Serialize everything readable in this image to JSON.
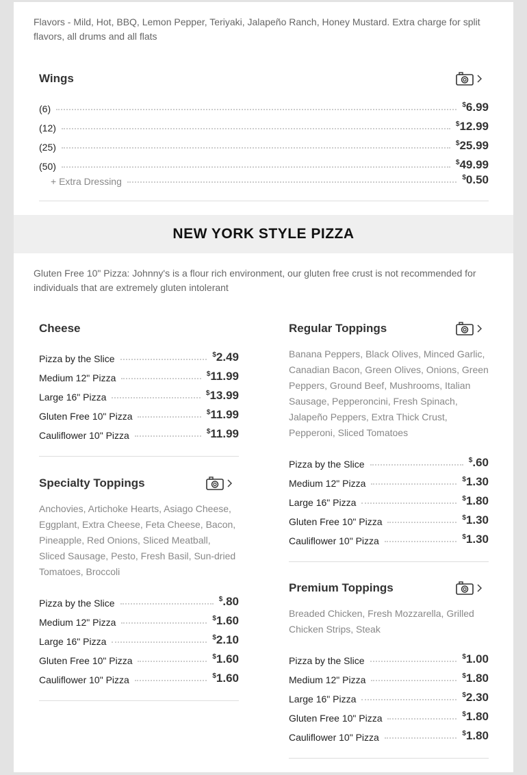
{
  "wings_note": "Flavors - Mild, Hot, BBQ, Lemon Pepper, Teriyaki, Jalapeño Ranch, Honey Mustard. Extra charge for split flavors, all drums and all flats",
  "wings": {
    "title": "Wings",
    "items": [
      {
        "label": "(6)",
        "price": "6.99"
      },
      {
        "label": "(12)",
        "price": "12.99"
      },
      {
        "label": "(25)",
        "price": "25.99"
      },
      {
        "label": "(50)",
        "price": "49.99"
      }
    ],
    "extra": {
      "label": "+ Extra Dressing",
      "price": "0.50"
    }
  },
  "section_title": "NEW YORK STYLE PIZZA",
  "pizza_note": "Gluten Free 10\" Pizza: Johnny's is a flour rich environment, our gluten free crust is not recommended for individuals that are extremely gluten intolerant",
  "currency": "$",
  "sections": [
    {
      "title": "Cheese",
      "photo": false,
      "desc": "",
      "items": [
        {
          "label": "Pizza by the Slice",
          "price": "2.49"
        },
        {
          "label": "Medium 12\" Pizza",
          "price": "11.99"
        },
        {
          "label": "Large 16\" Pizza",
          "price": "13.99"
        },
        {
          "label": "Gluten Free 10\" Pizza",
          "price": "11.99"
        },
        {
          "label": "Cauliflower 10\" Pizza",
          "price": "11.99"
        }
      ]
    },
    {
      "title": "Specialty Toppings",
      "photo": true,
      "desc": "Anchovies, Artichoke Hearts, Asiago Cheese, Eggplant, Extra Cheese, Feta Cheese, Bacon, Pineapple, Red Onions, Sliced Meatball, Sliced Sausage, Pesto, Fresh Basil, Sun-dried Tomatoes, Broccoli",
      "items": [
        {
          "label": "Pizza by the Slice",
          "price": ".80"
        },
        {
          "label": "Medium 12\" Pizza",
          "price": "1.60"
        },
        {
          "label": "Large 16\" Pizza",
          "price": "2.10"
        },
        {
          "label": "Gluten Free 10\" Pizza",
          "price": "1.60"
        },
        {
          "label": "Cauliflower 10\" Pizza",
          "price": "1.60"
        }
      ]
    },
    {
      "title": "Regular Toppings",
      "photo": true,
      "desc": "Banana Peppers, Black Olives, Minced Garlic, Canadian Bacon, Green Olives, Onions, Green Peppers, Ground Beef, Mushrooms, Italian Sausage, Pepperoncini, Fresh Spinach, Jalapeño Peppers, Extra Thick Crust, Pepperoni, Sliced Tomatoes",
      "items": [
        {
          "label": "Pizza by the Slice",
          "price": ".60"
        },
        {
          "label": "Medium 12\" Pizza",
          "price": "1.30"
        },
        {
          "label": "Large 16\" Pizza",
          "price": "1.80"
        },
        {
          "label": "Gluten Free 10\" Pizza",
          "price": "1.30"
        },
        {
          "label": "Cauliflower 10\" Pizza",
          "price": "1.30"
        }
      ]
    },
    {
      "title": "Premium Toppings",
      "photo": true,
      "desc": "Breaded Chicken, Fresh Mozzarella, Grilled Chicken Strips, Steak",
      "items": [
        {
          "label": "Pizza by the Slice",
          "price": "1.00"
        },
        {
          "label": "Medium 12\" Pizza",
          "price": "1.80"
        },
        {
          "label": "Large 16\" Pizza",
          "price": "2.30"
        },
        {
          "label": "Gluten Free 10\" Pizza",
          "price": "1.80"
        },
        {
          "label": "Cauliflower 10\" Pizza",
          "price": "1.80"
        }
      ]
    }
  ]
}
